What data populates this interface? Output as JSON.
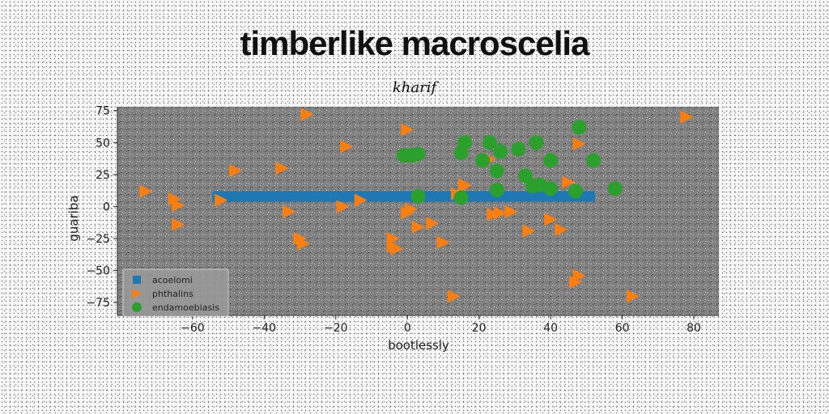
{
  "chart_data": {
    "type": "scatter",
    "title": "timberlike macroscelia",
    "subtitle": "kharif",
    "xlabel": "bootlessly",
    "ylabel": "guariba",
    "xlim": [
      -81,
      87
    ],
    "ylim": [
      -85,
      78
    ],
    "xticks": [
      -60,
      -40,
      -20,
      0,
      20,
      40,
      60,
      80
    ],
    "yticks": [
      75,
      50,
      25,
      0,
      -25,
      -50,
      -75
    ],
    "xtick_labels": [
      "−60",
      "−40",
      "−20",
      "0",
      "20",
      "40",
      "60",
      "80"
    ],
    "ytick_labels": [
      "75",
      "50",
      "25",
      "0",
      "−25",
      "−50",
      "−75"
    ],
    "grid": false,
    "legend_position": "lower-left",
    "series": [
      {
        "name": "acoelomi",
        "marker": "square",
        "color": "#1f77b4",
        "x": [
          -53,
          -51,
          -49,
          -47,
          -45,
          -43,
          -41,
          -39,
          -37,
          -35,
          -33,
          -31,
          -29,
          -27,
          -25,
          -23,
          -21,
          -19,
          -17,
          -15,
          -13,
          -11,
          -9,
          -7,
          -5,
          -3,
          -1,
          1,
          3,
          5,
          7,
          9,
          11,
          13,
          15,
          17,
          19,
          21,
          23,
          25,
          27,
          29,
          31,
          33,
          35,
          37,
          39,
          41,
          43,
          45,
          47,
          49,
          51
        ],
        "y": [
          8,
          8,
          8,
          8,
          8,
          8,
          8,
          8,
          8,
          8,
          8,
          8,
          8,
          8,
          8,
          8,
          8,
          8,
          8,
          8,
          8,
          8,
          8,
          8,
          8,
          8,
          8,
          8,
          8,
          8,
          8,
          8,
          8,
          8,
          8,
          8,
          8,
          8,
          8,
          8,
          8,
          8,
          8,
          8,
          8,
          8,
          8,
          8,
          8,
          8,
          8,
          8,
          8
        ]
      },
      {
        "name": "phthalins",
        "marker": "triangle-right",
        "color": "#ff7f0e",
        "x": [
          -28,
          78,
          -17,
          -48,
          -35,
          -73,
          -65,
          -64,
          -52,
          -33,
          -18,
          -13,
          0,
          3,
          1,
          -30,
          -29,
          -4,
          -4,
          -3,
          7,
          10,
          13,
          16,
          26,
          14,
          16,
          24,
          29,
          34,
          40,
          45,
          48,
          63,
          47,
          43,
          48,
          -64,
          0,
          23
        ],
        "y": [
          72,
          70,
          47,
          28,
          30,
          12,
          6,
          1,
          5,
          -4,
          0,
          5,
          60,
          -16,
          -2,
          -25,
          -29,
          -25,
          -31,
          -33,
          -13,
          -28,
          -70,
          16,
          -5,
          10,
          17,
          -6,
          -4,
          -19,
          -10,
          19,
          49,
          -70,
          -59,
          -18,
          -54,
          -14,
          -5,
          37
        ],
        "y_note": ""
      },
      {
        "name": "endamoebiasis",
        "marker": "circle",
        "color": "#2ca02c",
        "x": [
          1,
          3,
          15,
          16,
          23,
          21,
          25,
          31,
          36,
          40,
          33,
          35,
          37,
          48,
          52,
          47,
          25,
          15,
          40,
          3,
          58,
          -1,
          26
        ],
        "y": [
          40,
          41,
          42,
          50,
          50,
          36,
          28,
          45,
          50,
          36,
          24,
          16,
          17,
          62,
          36,
          12,
          13,
          7,
          14,
          8,
          14,
          40,
          43
        ]
      }
    ]
  }
}
